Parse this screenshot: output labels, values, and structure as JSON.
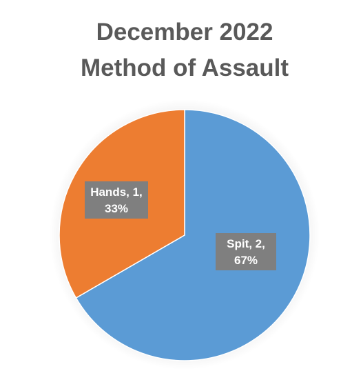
{
  "chart_data": {
    "type": "pie",
    "title_lines": [
      "December 2022",
      "Method of Assault"
    ],
    "slices": [
      {
        "name": "Spit",
        "value": 2,
        "percent": 67,
        "color": "#5b9bd5",
        "label_lines": [
          "Spit, 2,",
          "67%"
        ]
      },
      {
        "name": "Hands",
        "value": 1,
        "percent": 33,
        "color": "#ed7d31",
        "label_lines": [
          "Hands, 1,",
          "33%"
        ]
      }
    ],
    "label_box_color": "#7f7f7f",
    "legend": "none"
  }
}
